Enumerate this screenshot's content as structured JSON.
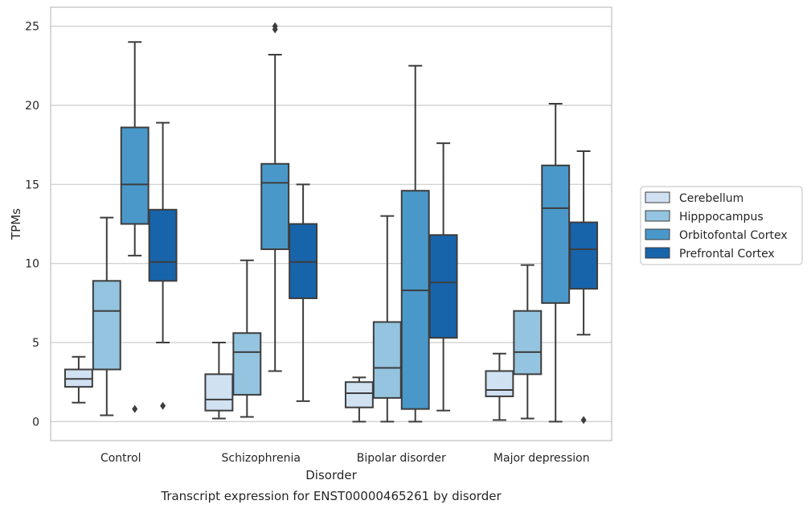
{
  "chart_data": {
    "type": "box",
    "title": "",
    "caption": "Transcript expression for ENST00000465261 by disorder",
    "xlabel": "Disorder",
    "ylabel": "TPMs",
    "ylim": [
      -1.2,
      26.2
    ],
    "yticks": [
      0,
      5,
      10,
      15,
      20,
      25
    ],
    "ytick_labels": [
      "0",
      "5",
      "10",
      "15",
      "20",
      "25"
    ],
    "grid": "horizontal",
    "legend_position": "right",
    "categories": [
      "Control",
      "Schizophrenia",
      "Bipolar disorder",
      "Major depression"
    ],
    "series": [
      {
        "name": "Cerebellum",
        "color": "#d0e1f2",
        "boxes": [
          {
            "whislo": 1.2,
            "q1": 2.2,
            "med": 2.7,
            "q3": 3.3,
            "whishi": 4.1,
            "fliers": []
          },
          {
            "whislo": 0.2,
            "q1": 0.7,
            "med": 1.4,
            "q3": 3.0,
            "whishi": 5.0,
            "fliers": []
          },
          {
            "whislo": 0.0,
            "q1": 0.9,
            "med": 1.8,
            "q3": 2.5,
            "whishi": 2.8,
            "fliers": []
          },
          {
            "whislo": 0.1,
            "q1": 1.6,
            "med": 2.0,
            "q3": 3.2,
            "whishi": 4.3,
            "fliers": []
          }
        ]
      },
      {
        "name": "Hipppocampus",
        "color": "#94c4df",
        "boxes": [
          {
            "whislo": 0.4,
            "q1": 3.3,
            "med": 7.0,
            "q3": 8.9,
            "whishi": 12.9,
            "fliers": []
          },
          {
            "whislo": 0.3,
            "q1": 1.7,
            "med": 4.4,
            "q3": 5.6,
            "whishi": 10.2,
            "fliers": []
          },
          {
            "whislo": 0.0,
            "q1": 1.5,
            "med": 3.4,
            "q3": 6.3,
            "whishi": 13.0,
            "fliers": []
          },
          {
            "whislo": 0.2,
            "q1": 3.0,
            "med": 4.4,
            "q3": 7.0,
            "whishi": 9.9,
            "fliers": []
          }
        ]
      },
      {
        "name": "Orbitofontal Cortex",
        "color": "#4a98c9",
        "boxes": [
          {
            "whislo": 10.5,
            "q1": 12.5,
            "med": 15.0,
            "q3": 18.6,
            "whishi": 24.0,
            "fliers": [
              0.8
            ]
          },
          {
            "whislo": 3.2,
            "q1": 10.9,
            "med": 15.1,
            "q3": 16.3,
            "whishi": 23.2,
            "fliers": [
              24.8,
              25.0
            ]
          },
          {
            "whislo": 0.0,
            "q1": 0.8,
            "med": 8.3,
            "q3": 14.6,
            "whishi": 22.5,
            "fliers": []
          },
          {
            "whislo": 0.0,
            "q1": 7.5,
            "med": 13.5,
            "q3": 16.2,
            "whishi": 20.1,
            "fliers": []
          }
        ]
      },
      {
        "name": "Prefrontal Cortex",
        "color": "#1764ab",
        "boxes": [
          {
            "whislo": 5.0,
            "q1": 8.9,
            "med": 10.1,
            "q3": 13.4,
            "whishi": 18.9,
            "fliers": [
              1.0
            ]
          },
          {
            "whislo": 1.3,
            "q1": 7.8,
            "med": 10.1,
            "q3": 12.5,
            "whishi": 15.0,
            "fliers": []
          },
          {
            "whislo": 0.7,
            "q1": 5.3,
            "med": 8.8,
            "q3": 11.8,
            "whishi": 17.6,
            "fliers": []
          },
          {
            "whislo": 5.5,
            "q1": 8.4,
            "med": 10.9,
            "q3": 12.6,
            "whishi": 17.1,
            "fliers": [
              0.1
            ]
          }
        ]
      }
    ]
  }
}
